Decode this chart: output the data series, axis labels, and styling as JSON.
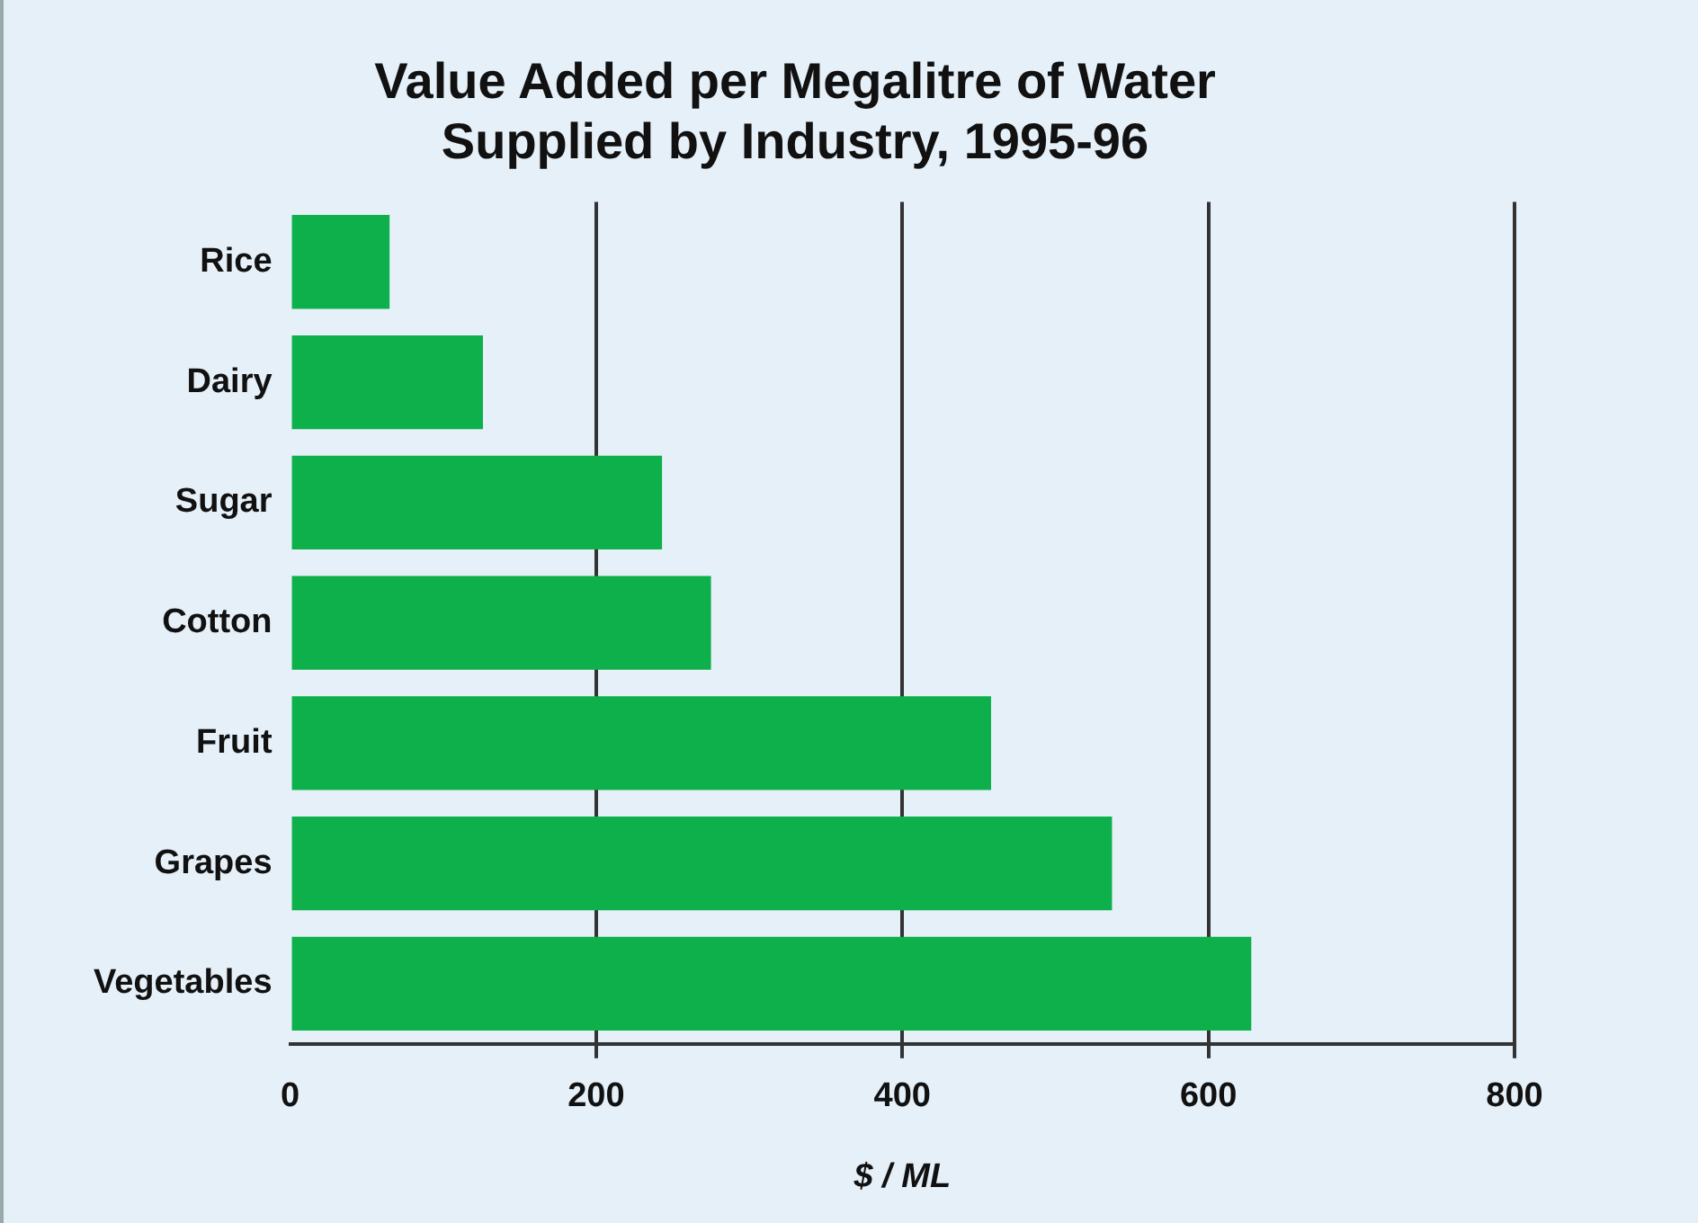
{
  "chart_data": {
    "type": "bar",
    "orientation": "horizontal",
    "title": "Value Added per Megalitre of Water\nSupplied by Industry, 1995-96",
    "xlabel": "$ / ML",
    "categories": [
      "Rice",
      "Dairy",
      "Sugar",
      "Cotton",
      "Fruit",
      "Grapes",
      "Vegetables"
    ],
    "values": [
      65,
      126,
      243,
      275,
      458,
      537,
      628
    ],
    "color": "#0db04b",
    "xlim": [
      0,
      800
    ],
    "xticks": [
      0,
      200,
      400,
      600,
      800
    ],
    "grid": "x",
    "legend": false
  }
}
